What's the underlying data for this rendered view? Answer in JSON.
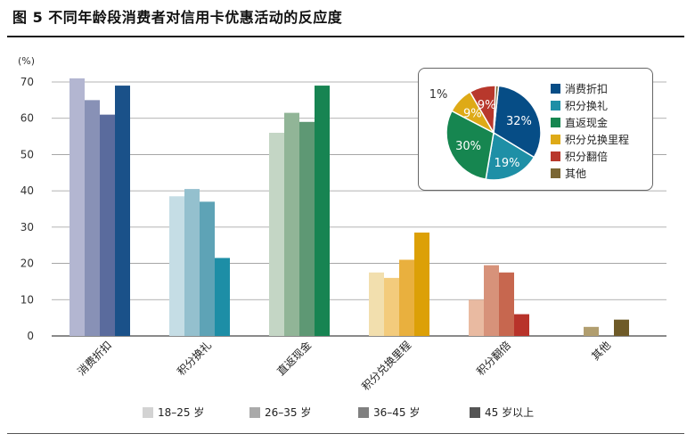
{
  "title": "图 5  不同年龄段消费者对信用卡优惠活动的反应度",
  "chart_data": [
    {
      "type": "bar",
      "ylabel": "(%)",
      "ylim": [
        0,
        70
      ],
      "yticks": [
        0,
        10,
        20,
        30,
        40,
        50,
        60,
        70
      ],
      "grid": true,
      "categories": [
        "消费折扣",
        "积分换礼",
        "直返现金",
        "积分兑换里程",
        "积分翻倍",
        "其他"
      ],
      "series": [
        {
          "name": "18–25 岁",
          "values": [
            71,
            38.5,
            56,
            17.5,
            10,
            0
          ]
        },
        {
          "name": "26–35 岁",
          "values": [
            65,
            40.5,
            61.5,
            16,
            19.5,
            2.5
          ]
        },
        {
          "name": "36–45 岁",
          "values": [
            61,
            37,
            59,
            21,
            17.5,
            0
          ]
        },
        {
          "name": "45 岁以上",
          "values": [
            69,
            21.5,
            69,
            28.5,
            6,
            4.5
          ]
        }
      ],
      "legend": {
        "position": "bottom",
        "items": [
          {
            "label": "18–25 岁",
            "color": "#d3d3d3"
          },
          {
            "label": "26–35 岁",
            "color": "#aaaaaa"
          },
          {
            "label": "36–45 岁",
            "color": "#808080"
          },
          {
            "label": "45 岁以上",
            "color": "#555555"
          }
        ]
      },
      "palettes": [
        [
          "#b3b6d1",
          "#8891b6",
          "#5a6b9d",
          "#1a5189"
        ],
        [
          "#c5dde5",
          "#94c0ce",
          "#5ea3b6",
          "#1d8ea6"
        ],
        [
          "#c4d6c5",
          "#91b597",
          "#5e9874",
          "#178452"
        ],
        [
          "#f2dfae",
          "#f3cb7c",
          "#e9b03e",
          "#dca007"
        ],
        [
          "#e9baa1",
          "#d7927a",
          "#c7674f",
          "#b8332a"
        ],
        [
          "#d8c9a6",
          "#b19e6f",
          "#8e7a42",
          "#6e5a27"
        ]
      ]
    },
    {
      "type": "pie",
      "slices": [
        {
          "label": "消费折扣",
          "value": 32,
          "display": "32%",
          "color": "#064d86"
        },
        {
          "label": "积分换礼",
          "value": 19,
          "display": "19%",
          "color": "#1e8fa6"
        },
        {
          "label": "直返现金",
          "value": 30,
          "display": "30%",
          "color": "#168650"
        },
        {
          "label": "积分兑换里程",
          "value": 9,
          "display": "9%",
          "color": "#deaa17"
        },
        {
          "label": "积分翻倍",
          "value": 9,
          "display": "9%",
          "color": "#b8382c"
        },
        {
          "label": "其他",
          "value": 1,
          "display": "1%",
          "color": "#7a6633"
        }
      ]
    }
  ]
}
